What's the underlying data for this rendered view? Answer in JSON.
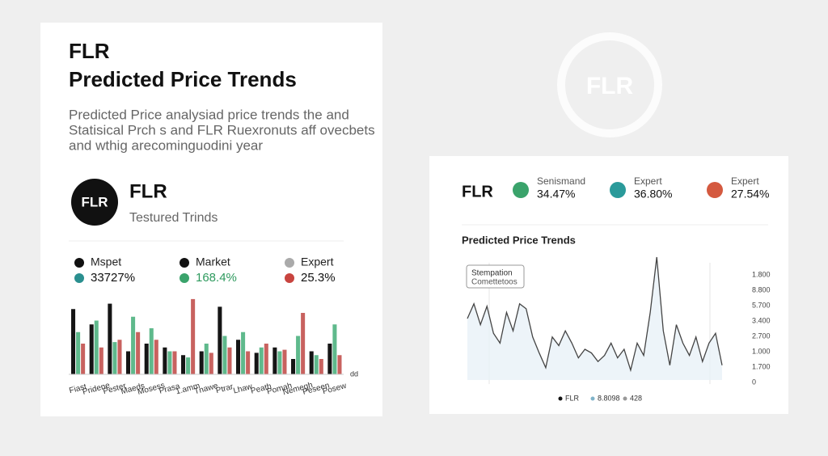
{
  "background_logo": "FLR",
  "left_card": {
    "title": "FLR",
    "subtitle": "Predicted Price Trends",
    "description": [
      "Predicted Price analysiad price trends the and",
      "Statisical Prch s and FLR Ruexronuts aff ovecbets",
      "and wthig arecominguodini year"
    ],
    "logo": "FLR",
    "name": "FLR",
    "tagline": "Testured Trinds",
    "stats": [
      {
        "label": "Mspet",
        "value": "33727%"
      },
      {
        "label": "Market",
        "value": "168.4%"
      },
      {
        "label": "Expert",
        "value": "25.3%"
      }
    ]
  },
  "right_card": {
    "name": "FLR",
    "stats": [
      {
        "label": "Senismand",
        "value": "34.47%"
      },
      {
        "label": "Expert",
        "value": "36.80%"
      },
      {
        "label": "Expert",
        "value": "27.54%"
      }
    ]
  },
  "chart_data": [
    {
      "type": "bar",
      "categories": [
        "Fiast",
        "Pridene",
        "Pester",
        "Maeds",
        "Mosess",
        "Prasa",
        "1.amm",
        "Tnawe",
        "Ptrar",
        "Lhaw",
        "Peath",
        "Pomah",
        "Nemegh",
        "Peseen",
        "Posew"
      ],
      "corner_label": "dd",
      "ylim": [
        0,
        100
      ],
      "series": [
        {
          "color": "#151515",
          "values": [
            85,
            65,
            92,
            30,
            40,
            35,
            25,
            30,
            88,
            45,
            28,
            35,
            20,
            30,
            40
          ]
        },
        {
          "color": "#5fb98c",
          "values": [
            55,
            70,
            42,
            75,
            60,
            30,
            22,
            40,
            50,
            55,
            35,
            30,
            50,
            25,
            65
          ]
        },
        {
          "color": "#c8625f",
          "values": [
            40,
            35,
            45,
            55,
            45,
            30,
            98,
            28,
            35,
            30,
            40,
            32,
            80,
            20,
            25
          ]
        }
      ]
    },
    {
      "type": "line",
      "title": "Predicted Price Trends",
      "annotation": [
        "Stempation",
        "Comettetoos"
      ],
      "y_labels": [
        "1.800",
        "8.800",
        "5.700",
        "3.400",
        "2.700",
        "1.000",
        "1.700",
        "0"
      ],
      "legend": [
        "FLR",
        "8.8098",
        "428"
      ],
      "ylim": [
        0,
        100
      ],
      "series": [
        {
          "name": "FLR",
          "color": "#444444",
          "values": [
            50,
            62,
            45,
            60,
            38,
            30,
            55,
            40,
            62,
            58,
            35,
            22,
            10,
            35,
            28,
            40,
            30,
            18,
            25,
            22,
            15,
            20,
            30,
            18,
            25,
            8,
            30,
            20,
            55,
            100,
            40,
            12,
            45,
            30,
            20,
            35,
            15,
            30,
            38,
            12
          ]
        }
      ]
    }
  ]
}
